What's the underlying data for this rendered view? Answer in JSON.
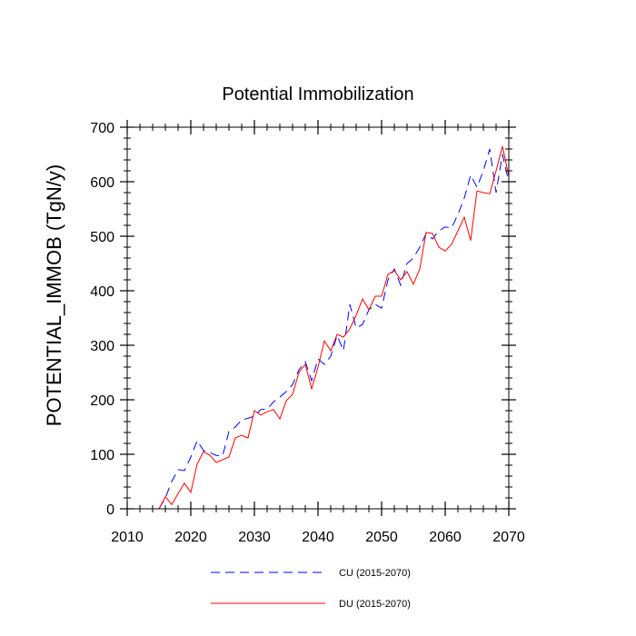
{
  "chart_data": {
    "type": "line",
    "title": "Potential Immobilization",
    "xlabel": "",
    "ylabel": "POTENTIAL_IMMOB  (TgN/y)",
    "xlim": [
      2010,
      2070
    ],
    "ylim": [
      0,
      700
    ],
    "x_ticks": [
      2010,
      2020,
      2030,
      2040,
      2050,
      2060,
      2070
    ],
    "y_ticks": [
      0,
      100,
      200,
      300,
      400,
      500,
      600,
      700
    ],
    "x_tick_labels": [
      "2010",
      "2020",
      "2030",
      "2040",
      "2050",
      "2060",
      "2070"
    ],
    "y_tick_labels": [
      "0",
      "100",
      "200",
      "300",
      "400",
      "500",
      "600",
      "700"
    ],
    "grid": false,
    "legend_position": "bottom",
    "x": [
      2015,
      2016,
      2017,
      2018,
      2019,
      2020,
      2021,
      2022,
      2023,
      2024,
      2025,
      2026,
      2027,
      2028,
      2029,
      2030,
      2031,
      2032,
      2033,
      2034,
      2035,
      2036,
      2037,
      2038,
      2039,
      2040,
      2041,
      2042,
      2043,
      2044,
      2045,
      2046,
      2047,
      2048,
      2049,
      2050,
      2051,
      2052,
      2053,
      2054,
      2055,
      2056,
      2057,
      2058,
      2059,
      2060,
      2061,
      2062,
      2063,
      2064,
      2065,
      2066,
      2067,
      2068,
      2069,
      2070
    ],
    "series": [
      {
        "name": "CU (2015-2070)",
        "color": "#0000ff",
        "style": "dashed",
        "values": [
          0,
          20,
          50,
          72,
          70,
          95,
          125,
          107,
          103,
          98,
          97,
          142,
          150,
          163,
          166,
          170,
          182,
          183,
          196,
          205,
          215,
          228,
          255,
          270,
          235,
          275,
          265,
          280,
          318,
          290,
          375,
          332,
          338,
          365,
          375,
          368,
          420,
          440,
          410,
          450,
          460,
          480,
          505,
          495,
          510,
          517,
          515,
          540,
          570,
          612,
          590,
          620,
          660,
          580,
          650,
          600
        ]
      },
      {
        "name": "DU (2015-2070)",
        "color": "#ff0000",
        "style": "solid",
        "values": [
          0,
          22,
          8,
          28,
          47,
          30,
          82,
          105,
          98,
          85,
          90,
          95,
          130,
          135,
          130,
          180,
          172,
          178,
          182,
          165,
          198,
          210,
          250,
          265,
          220,
          260,
          308,
          290,
          320,
          315,
          330,
          355,
          385,
          365,
          390,
          390,
          430,
          437,
          420,
          435,
          412,
          440,
          507,
          505,
          480,
          473,
          485,
          510,
          535,
          492,
          583,
          580,
          578,
          620,
          665,
          610
        ]
      }
    ]
  }
}
